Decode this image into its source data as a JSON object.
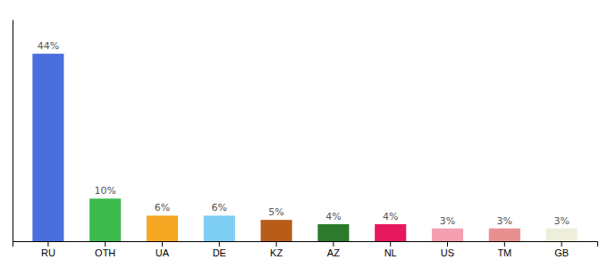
{
  "chart_data": {
    "type": "bar",
    "categories": [
      "RU",
      "OTH",
      "UA",
      "DE",
      "KZ",
      "AZ",
      "NL",
      "US",
      "TM",
      "GB"
    ],
    "values": [
      44,
      10,
      6,
      6,
      5,
      4,
      4,
      3,
      3,
      3
    ],
    "value_labels": [
      "44%",
      "10%",
      "6%",
      "6%",
      "5%",
      "4%",
      "4%",
      "3%",
      "3%",
      "3%"
    ],
    "colors": [
      "#4a6fdc",
      "#3dba4e",
      "#f5a623",
      "#7ecef4",
      "#b85c1a",
      "#2d7a2d",
      "#e8185e",
      "#f4a0b0",
      "#e89090",
      "#eeeedd"
    ],
    "ylim": [
      0,
      52
    ],
    "grid": false,
    "data_labels": true,
    "tick_labels": "x"
  }
}
